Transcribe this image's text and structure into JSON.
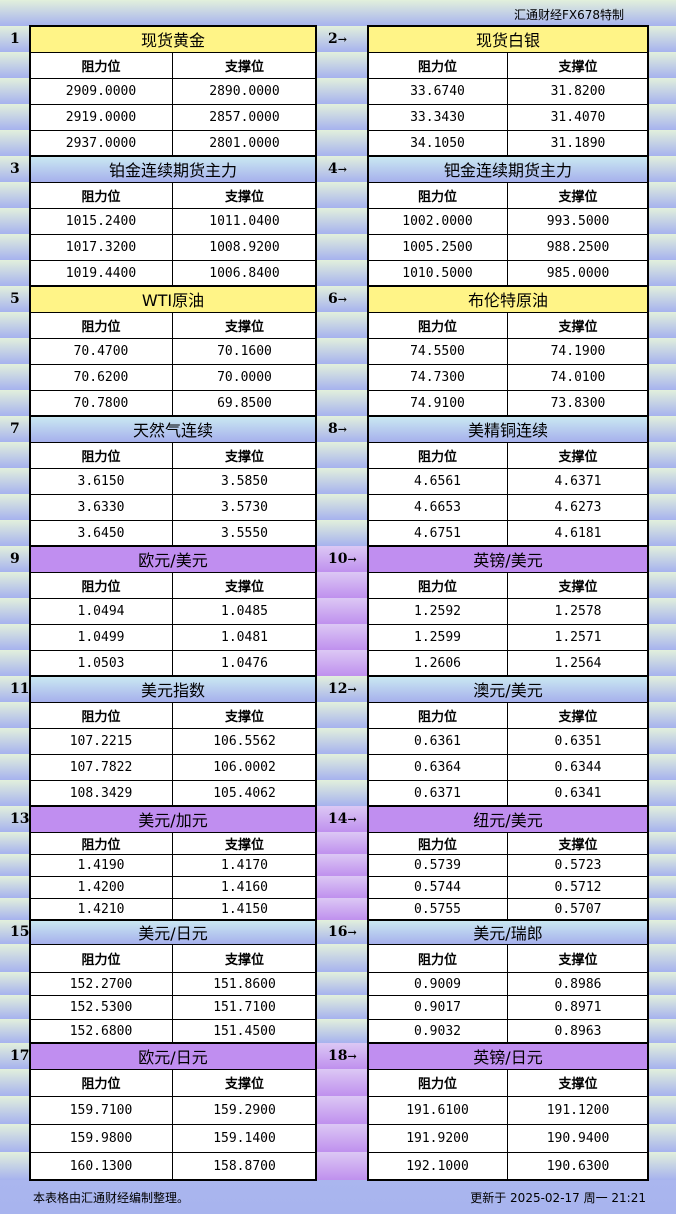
{
  "brand": "汇通财经FX678特制",
  "col_headers": {
    "resistance": "阻力位",
    "support": "支撑位"
  },
  "arrow": "→",
  "sections": [
    {
      "no": "1",
      "title": "现货黄金",
      "color": "yellow",
      "rows": [
        [
          "2909.0000",
          "2890.0000"
        ],
        [
          "2919.0000",
          "2857.0000"
        ],
        [
          "2937.0000",
          "2801.0000"
        ]
      ]
    },
    {
      "no": "2",
      "title": "现货白银",
      "color": "yellow",
      "rows": [
        [
          "33.6740",
          "31.8200"
        ],
        [
          "33.3430",
          "31.4070"
        ],
        [
          "34.1050",
          "31.1890"
        ]
      ]
    },
    {
      "no": "3",
      "title": "铂金连续期货主力",
      "color": "blue",
      "rows": [
        [
          "1015.2400",
          "1011.0400"
        ],
        [
          "1017.3200",
          "1008.9200"
        ],
        [
          "1019.4400",
          "1006.8400"
        ]
      ]
    },
    {
      "no": "4",
      "title": "钯金连续期货主力",
      "color": "blue",
      "rows": [
        [
          "1002.0000",
          "993.5000"
        ],
        [
          "1005.2500",
          "988.2500"
        ],
        [
          "1010.5000",
          "985.0000"
        ]
      ]
    },
    {
      "no": "5",
      "title": "WTI原油",
      "color": "yellow",
      "rows": [
        [
          "70.4700",
          "70.1600"
        ],
        [
          "70.6200",
          "70.0000"
        ],
        [
          "70.7800",
          "69.8500"
        ]
      ]
    },
    {
      "no": "6",
      "title": "布伦特原油",
      "color": "yellow",
      "rows": [
        [
          "74.5500",
          "74.1900"
        ],
        [
          "74.7300",
          "74.0100"
        ],
        [
          "74.9100",
          "73.8300"
        ]
      ]
    },
    {
      "no": "7",
      "title": "天然气连续",
      "color": "blue",
      "rows": [
        [
          "3.6150",
          "3.5850"
        ],
        [
          "3.6330",
          "3.5730"
        ],
        [
          "3.6450",
          "3.5550"
        ]
      ]
    },
    {
      "no": "8",
      "title": "美精铜连续",
      "color": "blue",
      "rows": [
        [
          "4.6561",
          "4.6371"
        ],
        [
          "4.6653",
          "4.6273"
        ],
        [
          "4.6751",
          "4.6181"
        ]
      ]
    },
    {
      "no": "9",
      "title": "欧元/美元",
      "color": "purple",
      "rows": [
        [
          "1.0494",
          "1.0485"
        ],
        [
          "1.0499",
          "1.0481"
        ],
        [
          "1.0503",
          "1.0476"
        ]
      ]
    },
    {
      "no": "10",
      "title": "英镑/美元",
      "color": "purple",
      "rows": [
        [
          "1.2592",
          "1.2578"
        ],
        [
          "1.2599",
          "1.2571"
        ],
        [
          "1.2606",
          "1.2564"
        ]
      ]
    },
    {
      "no": "11",
      "title": "美元指数",
      "color": "blue",
      "rows": [
        [
          "107.2215",
          "106.5562"
        ],
        [
          "107.7822",
          "106.0002"
        ],
        [
          "108.3429",
          "105.4062"
        ]
      ]
    },
    {
      "no": "12",
      "title": "澳元/美元",
      "color": "blue",
      "rows": [
        [
          "0.6361",
          "0.6351"
        ],
        [
          "0.6364",
          "0.6344"
        ],
        [
          "0.6371",
          "0.6341"
        ]
      ]
    },
    {
      "no": "13",
      "title": "美元/加元",
      "color": "purple",
      "rows": [
        [
          "1.4190",
          "1.4170"
        ],
        [
          "1.4200",
          "1.4160"
        ],
        [
          "1.4210",
          "1.4150"
        ]
      ]
    },
    {
      "no": "14",
      "title": "纽元/美元",
      "color": "purple",
      "rows": [
        [
          "0.5739",
          "0.5723"
        ],
        [
          "0.5744",
          "0.5712"
        ],
        [
          "0.5755",
          "0.5707"
        ]
      ]
    },
    {
      "no": "15",
      "title": "美元/日元",
      "color": "blue",
      "rows": [
        [
          "152.2700",
          "151.8600"
        ],
        [
          "152.5300",
          "151.7100"
        ],
        [
          "152.6800",
          "151.4500"
        ]
      ]
    },
    {
      "no": "16",
      "title": "美元/瑞郎",
      "color": "blue",
      "rows": [
        [
          "0.9009",
          "0.8986"
        ],
        [
          "0.9017",
          "0.8971"
        ],
        [
          "0.9032",
          "0.8963"
        ]
      ]
    },
    {
      "no": "17",
      "title": "欧元/日元",
      "color": "purple",
      "rows": [
        [
          "159.7100",
          "159.2900"
        ],
        [
          "159.9800",
          "159.1400"
        ],
        [
          "160.1300",
          "158.8700"
        ]
      ]
    },
    {
      "no": "18",
      "title": "英镑/日元",
      "color": "purple",
      "rows": [
        [
          "191.6100",
          "191.1200"
        ],
        [
          "191.9200",
          "190.9400"
        ],
        [
          "192.1000",
          "190.6300"
        ]
      ]
    }
  ],
  "footer": {
    "note": "本表格由汇通财经编制整理。",
    "updated": "更新于 2025-02-17 周一 21:21"
  },
  "watermark": "FX678"
}
